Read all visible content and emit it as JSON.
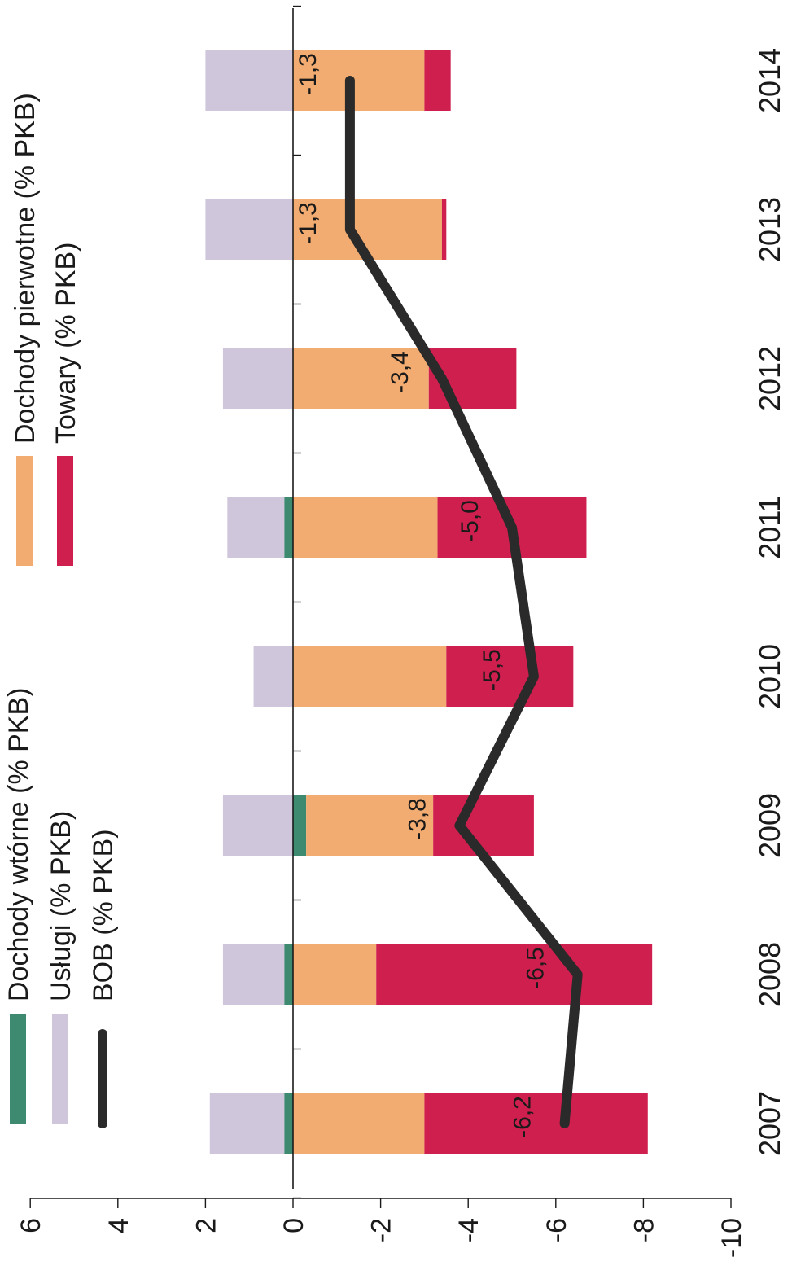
{
  "chart_data": {
    "type": "bar",
    "orientation": "rotated-90",
    "stacked": true,
    "categories": [
      "2007",
      "2008",
      "2009",
      "2010",
      "2011",
      "2012",
      "2013",
      "2014"
    ],
    "ylim": [
      -10,
      6
    ],
    "yticks": [
      "6",
      "4",
      "2",
      "0",
      "-2",
      "-4",
      "-6",
      "-8",
      "-10"
    ],
    "series": [
      {
        "name": "Dochody wtórne (% PKB)",
        "kind": "bar",
        "color": "#3e8a70",
        "values": [
          0.2,
          0.2,
          -0.3,
          0.0,
          0.2,
          0.0,
          0.0,
          0.0
        ]
      },
      {
        "name": "Usługi (% PKB)",
        "kind": "bar",
        "color": "#cfc6dc",
        "values": [
          1.7,
          1.4,
          1.6,
          0.9,
          1.3,
          1.6,
          2.0,
          2.0
        ]
      },
      {
        "name": "BOB (% PKB)",
        "kind": "line",
        "color": "#2a2a2a",
        "values": [
          -6.2,
          -6.5,
          -3.8,
          -5.5,
          -5.0,
          -3.4,
          -1.3,
          -1.3
        ]
      },
      {
        "name": "Dochody pierwotne (% PKB)",
        "kind": "bar",
        "color": "#f2ab70",
        "values": [
          -3.0,
          -1.9,
          -2.9,
          -3.5,
          -3.3,
          -3.1,
          -3.4,
          -3.0
        ]
      },
      {
        "name": "Towary (% PKB)",
        "kind": "bar",
        "color": "#cf1f4e",
        "values": [
          -5.1,
          -6.3,
          -2.3,
          -2.9,
          -3.4,
          -2.0,
          -0.1,
          -0.6
        ]
      }
    ],
    "data_labels": [
      "-6,2",
      "-6,5",
      "-3,8",
      "-5,5",
      "-5,0",
      "-3,4",
      "-1,3",
      "-1,3"
    ]
  }
}
